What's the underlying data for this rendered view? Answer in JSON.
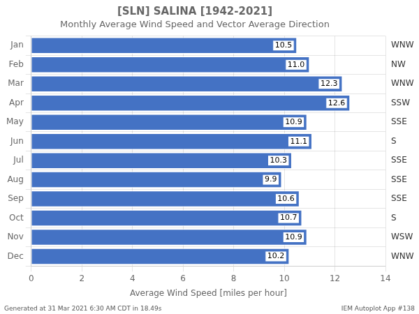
{
  "chart_data": {
    "type": "bar",
    "orientation": "horizontal",
    "title": "[SLN] SALINA [1942-2021]",
    "subtitle": "Monthly Average Wind Speed and Vector Average Direction",
    "categories": [
      "Jan",
      "Feb",
      "Mar",
      "Apr",
      "May",
      "Jun",
      "Jul",
      "Aug",
      "Sep",
      "Oct",
      "Nov",
      "Dec"
    ],
    "values": [
      10.5,
      11.0,
      12.3,
      12.6,
      10.9,
      11.1,
      10.3,
      9.9,
      10.6,
      10.7,
      10.9,
      10.2
    ],
    "value_labels": [
      "10.5",
      "11.0",
      "12.3",
      "12.6",
      "10.9",
      "11.1",
      "10.3",
      "9.9",
      "10.6",
      "10.7",
      "10.9",
      "10.2"
    ],
    "data_labels": true,
    "direction_labels": [
      "WNW",
      "NW",
      "WNW",
      "SSW",
      "SSE",
      "S",
      "SSE",
      "SSE",
      "SSE",
      "S",
      "WSW",
      "WNW"
    ],
    "color": "#4472C4",
    "xlabel": "Average Wind Speed [miles per hour]",
    "xlim": [
      0,
      14
    ],
    "xticks": [
      0,
      2,
      4,
      6,
      8,
      10,
      12,
      14
    ],
    "grid": true,
    "footer": [
      "Generated at 31 Mar 2021 6:30 AM CDT in 18.49s",
      "IEM Autoplot App #138"
    ]
  }
}
